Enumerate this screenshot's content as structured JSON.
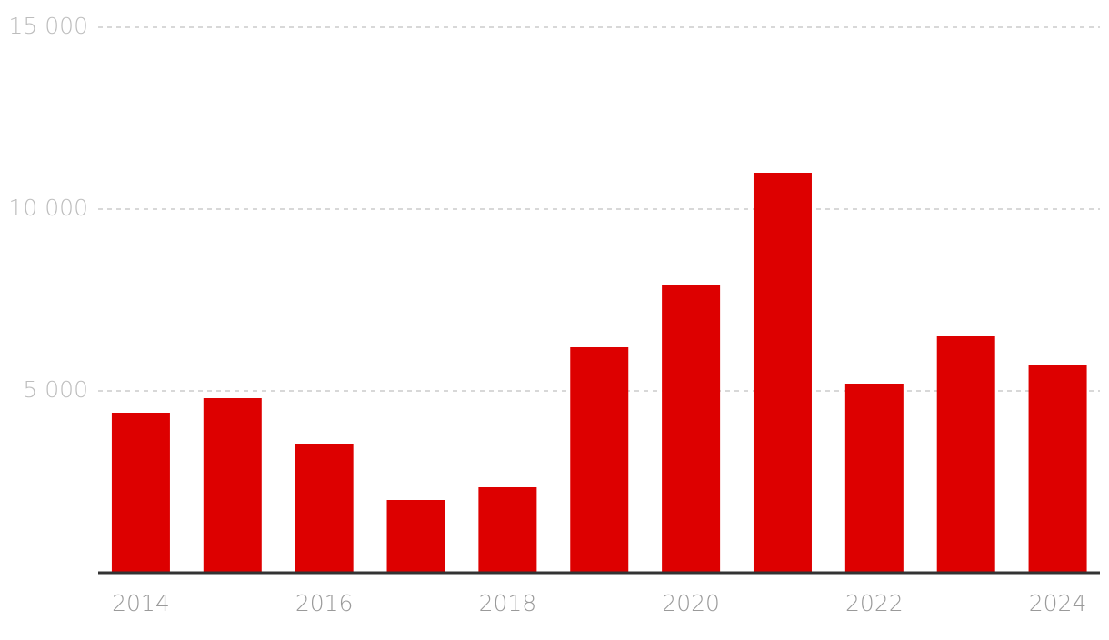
{
  "chart_data": {
    "type": "bar",
    "categories": [
      "2014",
      null,
      "2016",
      null,
      "2018",
      null,
      "2020",
      null,
      "2022",
      null,
      "2024"
    ],
    "values": [
      4400,
      4800,
      3550,
      2000,
      2350,
      6200,
      7900,
      11000,
      5200,
      6500,
      5700
    ],
    "color": "#dd0000",
    "ylim": [
      0,
      15000
    ],
    "yticks": [
      {
        "value": 5000,
        "label": "5 000"
      },
      {
        "value": 10000,
        "label": "10 000"
      },
      {
        "value": 15000,
        "label": "15 000"
      }
    ],
    "grid": true
  }
}
